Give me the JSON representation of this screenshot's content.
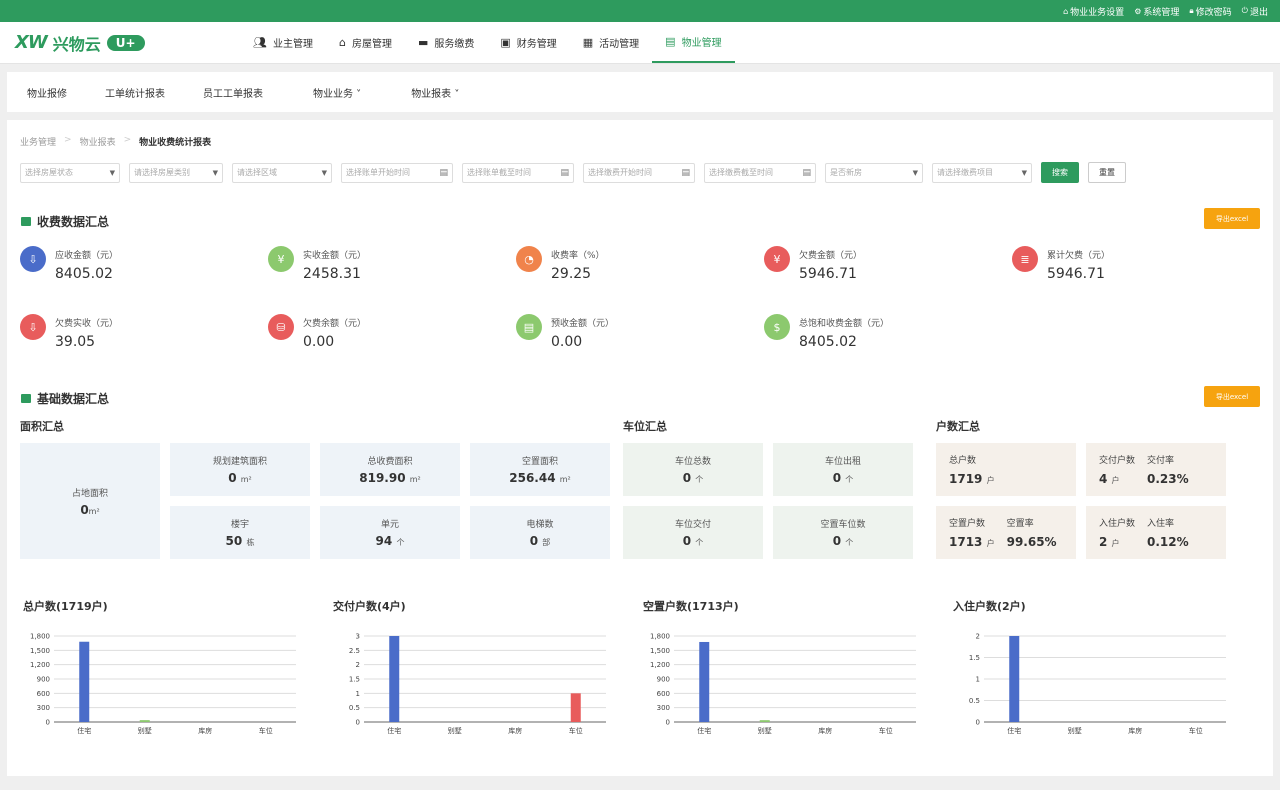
{
  "topbar": {
    "links": [
      {
        "icon": "home-icon",
        "label": "物业业务设置"
      },
      {
        "icon": "gear-icon",
        "label": "系统管理"
      },
      {
        "icon": "lock-icon",
        "label": "修改密码"
      },
      {
        "icon": "power-icon",
        "label": "退出"
      }
    ]
  },
  "logo": {
    "mark": "XW",
    "name": "兴物云",
    "badge": "U+"
  },
  "nav": [
    {
      "icon": "users-icon",
      "label": "业主管理"
    },
    {
      "icon": "home-icon",
      "label": "房屋管理"
    },
    {
      "icon": "card-icon",
      "label": "服务缴费"
    },
    {
      "icon": "wallet-icon",
      "label": "财务管理"
    },
    {
      "icon": "calendar-icon",
      "label": "活动管理"
    },
    {
      "icon": "briefcase-icon",
      "label": "物业管理",
      "active": true
    }
  ],
  "subnav": [
    "物业报修",
    "工单统计报表",
    "员工工单报表",
    "物业业务 ˅",
    "物业报表 ˅"
  ],
  "breadcrumb": [
    "业务管理",
    "物业报表",
    "物业收费统计报表"
  ],
  "filters": {
    "status": "选择房屋状态",
    "house_type": "请选择房屋类别",
    "area": "请选择区域",
    "bill_start": "选择账单开始时间",
    "bill_end": "选择账单截至时间",
    "pay_start": "选择缴费开始时间",
    "pay_end": "选择缴费截至时间",
    "new_house": "是否新房",
    "pay_item": "请选择缴费项目",
    "search": "搜索",
    "reset": "重置"
  },
  "fee_section": {
    "title": "收费数据汇总",
    "export": "导出excel",
    "stats": [
      {
        "label": "应收金额（元）",
        "value": "8405.02",
        "color": "#4a6cc9",
        "icon": "arrow-down-icon"
      },
      {
        "label": "实收金额（元）",
        "value": "2458.31",
        "color": "#8cc96e",
        "icon": "yen-icon"
      },
      {
        "label": "收费率（%）",
        "value": "29.25",
        "color": "#f0834b",
        "icon": "pie-icon"
      },
      {
        "label": "欠费金额（元）",
        "value": "5946.71",
        "color": "#e85c5c",
        "icon": "yen-icon"
      },
      {
        "label": "累计欠费（元）",
        "value": "5946.71",
        "color": "#e85c5c",
        "icon": "list-icon"
      },
      {
        "label": "欠费实收（元）",
        "value": "39.05",
        "color": "#e85c5c",
        "icon": "arrow-down-icon"
      },
      {
        "label": "欠费余额（元）",
        "value": "0.00",
        "color": "#e85c5c",
        "icon": "coins-icon"
      },
      {
        "label": "预收金额（元）",
        "value": "0.00",
        "color": "#8cc96e",
        "icon": "doc-icon"
      },
      {
        "label": "总饱和收费金额（元）",
        "value": "8405.02",
        "color": "#8cc96e",
        "icon": "moneybag-icon"
      }
    ]
  },
  "base_section": {
    "title": "基础数据汇总",
    "export": "导出excel",
    "area": {
      "title": "面积汇总",
      "land": {
        "label": "占地面积",
        "value": "0",
        "unit": "m²"
      },
      "planned": {
        "label": "规划建筑面积",
        "value": "0",
        "unit": "m²"
      },
      "charge": {
        "label": "总收费面积",
        "value": "819.90",
        "unit": "m²"
      },
      "vacant": {
        "label": "空置面积",
        "value": "256.44",
        "unit": "m²"
      },
      "building": {
        "label": "楼宇",
        "value": "50",
        "unit": "栋"
      },
      "unit": {
        "label": "单元",
        "value": "94",
        "unit": "个"
      },
      "elevator": {
        "label": "电梯数",
        "value": "0",
        "unit": "部"
      }
    },
    "parking": {
      "title": "车位汇总",
      "total": {
        "label": "车位总数",
        "value": "0",
        "unit": "个"
      },
      "rent": {
        "label": "车位出租",
        "value": "0",
        "unit": "个"
      },
      "delivered": {
        "label": "车位交付",
        "value": "0",
        "unit": "个"
      },
      "vacant": {
        "label": "空置车位数",
        "value": "0",
        "unit": "个"
      }
    },
    "households": {
      "title": "户数汇总",
      "total": {
        "label": "总户数",
        "value": "1719",
        "unit": "户"
      },
      "delivered": {
        "label": "交付户数",
        "value": "4",
        "unit": "户",
        "rate_label": "交付率",
        "rate": "0.23%"
      },
      "vacant": {
        "label": "空置户数",
        "value": "1713",
        "unit": "户",
        "rate_label": "空置率",
        "rate": "99.65%"
      },
      "occupied": {
        "label": "入住户数",
        "value": "2",
        "unit": "户",
        "rate_label": "入住率",
        "rate": "0.12%"
      }
    }
  },
  "chart_data": [
    {
      "type": "bar",
      "title": "总户数(1719户)",
      "categories": [
        "住宅",
        "别墅",
        "库房",
        "车位"
      ],
      "values": [
        1680,
        39,
        0,
        0
      ],
      "colors": [
        "#4a6cc9",
        "#8cc96e",
        "#4a6cc9",
        "#4a6cc9"
      ],
      "ylim": [
        0,
        1800
      ],
      "yticks": [
        0,
        300,
        600,
        900,
        1200,
        1500,
        1800
      ],
      "ytick_labels": [
        "0",
        "300",
        "600",
        "900",
        "1,200",
        "1,500",
        "1,800"
      ]
    },
    {
      "type": "bar",
      "title": "交付户数(4户)",
      "categories": [
        "住宅",
        "别墅",
        "库房",
        "车位"
      ],
      "values": [
        3,
        0,
        0,
        1
      ],
      "colors": [
        "#4a6cc9",
        "#8cc96e",
        "#4a6cc9",
        "#e85c5c"
      ],
      "ylim": [
        0,
        3
      ],
      "yticks": [
        0,
        0.5,
        1,
        1.5,
        2,
        2.5,
        3
      ],
      "ytick_labels": [
        "0",
        "0.5",
        "1",
        "1.5",
        "2",
        "2.5",
        "3"
      ]
    },
    {
      "type": "bar",
      "title": "空置户数(1713户)",
      "categories": [
        "住宅",
        "别墅",
        "库房",
        "车位"
      ],
      "values": [
        1675,
        38,
        0,
        0
      ],
      "colors": [
        "#4a6cc9",
        "#8cc96e",
        "#4a6cc9",
        "#4a6cc9"
      ],
      "ylim": [
        0,
        1800
      ],
      "yticks": [
        0,
        300,
        600,
        900,
        1200,
        1500,
        1800
      ],
      "ytick_labels": [
        "0",
        "300",
        "600",
        "900",
        "1,200",
        "1,500",
        "1,800"
      ]
    },
    {
      "type": "bar",
      "title": "入住户数(2户)",
      "categories": [
        "住宅",
        "别墅",
        "库房",
        "车位"
      ],
      "values": [
        2,
        0,
        0,
        0
      ],
      "colors": [
        "#4a6cc9",
        "#8cc96e",
        "#4a6cc9",
        "#4a6cc9"
      ],
      "ylim": [
        0,
        2
      ],
      "yticks": [
        0,
        0.5,
        1,
        1.5,
        2
      ],
      "ytick_labels": [
        "0",
        "0.5",
        "1",
        "1.5",
        "2"
      ]
    }
  ]
}
